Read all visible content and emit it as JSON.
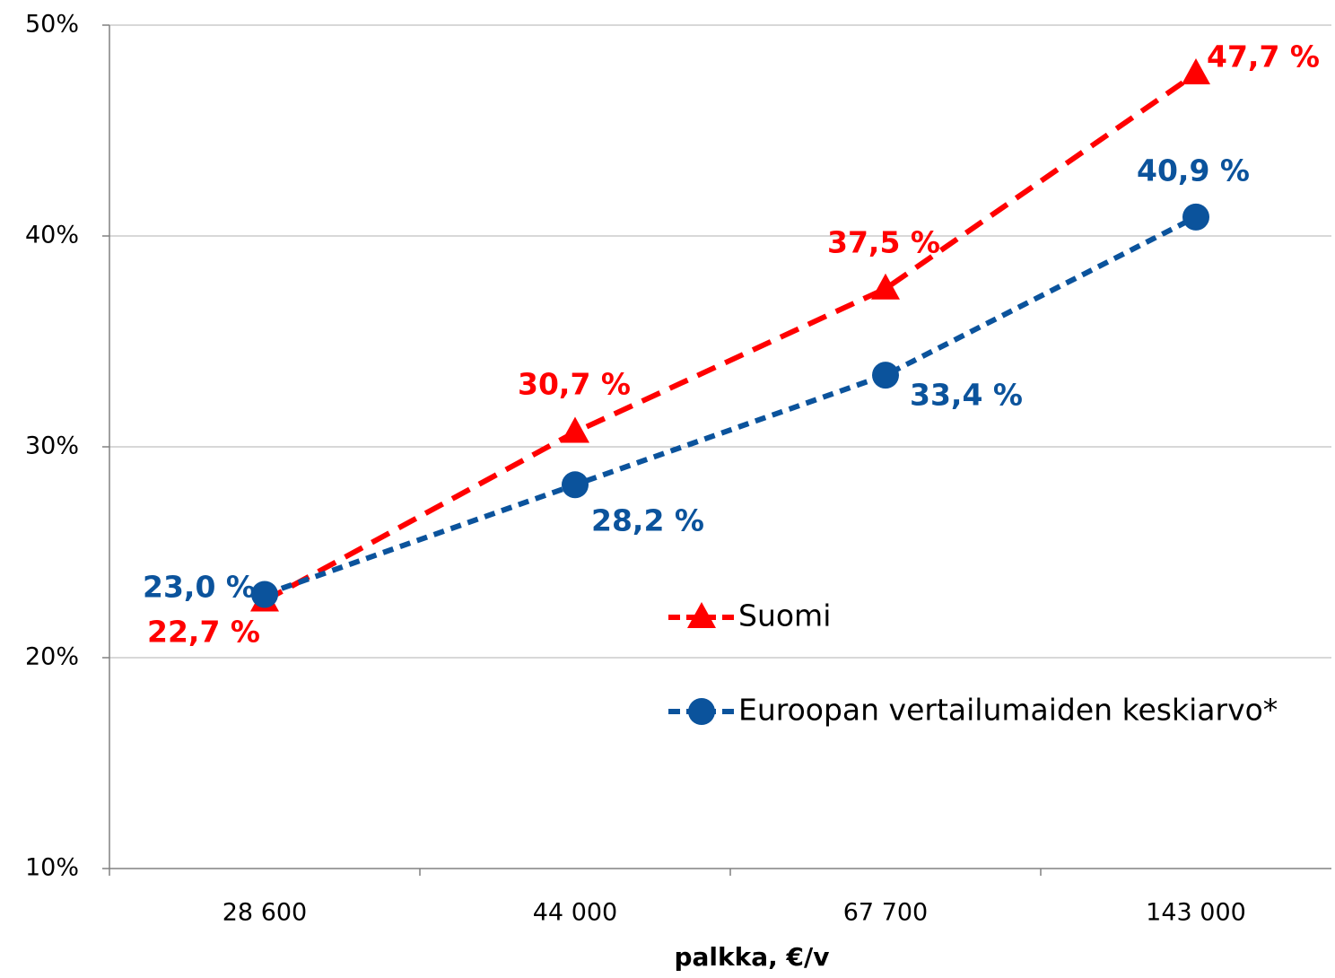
{
  "chart_data": {
    "type": "line",
    "x_label": "palkka, €/v",
    "categories": [
      "28 600",
      "44 000",
      "67 700",
      "143 000"
    ],
    "series": [
      {
        "name": "Suomi",
        "color": "#ff0000",
        "marker": "triangle",
        "values": [
          22.7,
          30.7,
          37.5,
          47.7
        ],
        "value_labels": [
          "22,7 %",
          "30,7 %",
          "37,5 %",
          "47,7 %"
        ]
      },
      {
        "name": "Euroopan vertailumaiden keskiarvo*",
        "color": "#0b539c",
        "marker": "circle",
        "values": [
          23.0,
          28.2,
          33.4,
          40.9
        ],
        "value_labels": [
          "23,0 %",
          "28,2 %",
          "33,4 %",
          "40,9 %"
        ]
      }
    ],
    "ylim": [
      10,
      50
    ],
    "yticks": [
      {
        "value": 10,
        "label": "10%"
      },
      {
        "value": 20,
        "label": "20%"
      },
      {
        "value": 30,
        "label": "30%"
      },
      {
        "value": 40,
        "label": "40%"
      },
      {
        "value": 50,
        "label": "50%"
      }
    ],
    "grid": true
  }
}
